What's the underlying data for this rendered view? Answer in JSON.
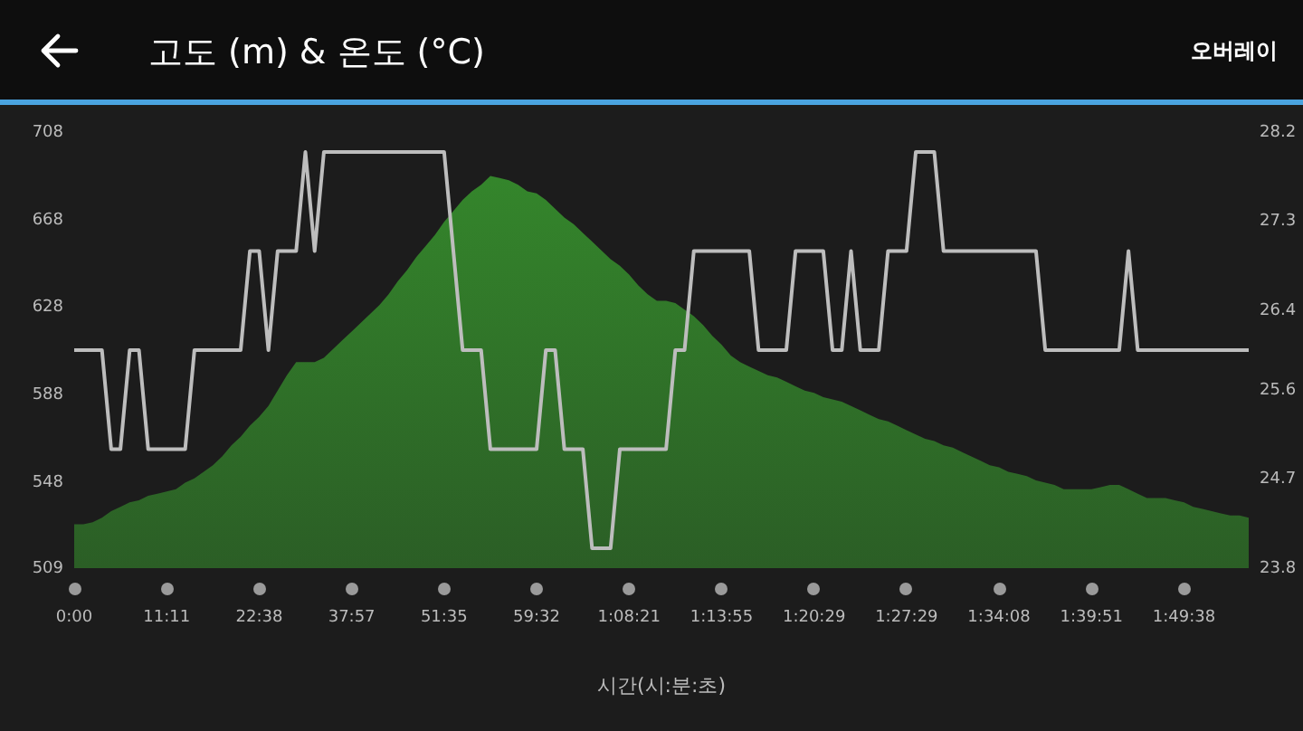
{
  "chart_data": {
    "type": "area",
    "title": "고도 (m) & 온도 (°C)",
    "xlabel": "시간(시:분:초)",
    "annotations": [
      "오버레이"
    ],
    "grid": false,
    "legend": false,
    "categories": [
      "0:00",
      null,
      null,
      null,
      null,
      null,
      null,
      null,
      null,
      null,
      "11:11",
      null,
      null,
      null,
      null,
      null,
      null,
      null,
      null,
      null,
      "22:38",
      null,
      null,
      null,
      null,
      null,
      null,
      null,
      null,
      null,
      "37:57",
      null,
      null,
      null,
      null,
      null,
      null,
      null,
      null,
      null,
      "51:35",
      null,
      null,
      null,
      null,
      null,
      null,
      null,
      null,
      null,
      "59:32",
      null,
      null,
      null,
      null,
      null,
      null,
      null,
      null,
      null,
      "1:08:21",
      null,
      null,
      null,
      null,
      null,
      null,
      null,
      null,
      null,
      "1:13:55",
      null,
      null,
      null,
      null,
      null,
      null,
      null,
      null,
      null,
      "1:20:29",
      null,
      null,
      null,
      null,
      null,
      null,
      null,
      null,
      null,
      "1:27:29",
      null,
      null,
      null,
      null,
      null,
      null,
      null,
      null,
      null,
      "1:34:08",
      null,
      null,
      null,
      null,
      null,
      null,
      null,
      null,
      null,
      "1:39:51",
      null,
      null,
      null,
      null,
      null,
      null,
      null,
      null,
      null,
      "1:49:38",
      null,
      null,
      null,
      null,
      null,
      null,
      null
    ],
    "ylim": [
      509,
      708
    ],
    "yticks": [
      509,
      548,
      588,
      628,
      668,
      708
    ],
    "y2lim": [
      23.8,
      28.2
    ],
    "y2ticks": [
      23.8,
      24.7,
      25.6,
      26.4,
      27.3,
      28.2
    ],
    "series": [
      {
        "color": "#358a2c",
        "values": [
          529,
          529,
          530,
          532,
          535,
          537,
          539,
          540,
          542,
          543,
          544,
          545,
          548,
          550,
          553,
          556,
          560,
          565,
          569,
          574,
          578,
          583,
          590,
          597,
          603,
          603,
          603,
          605,
          609,
          613,
          617,
          621,
          625,
          629,
          634,
          640,
          645,
          651,
          656,
          661,
          667,
          672,
          677,
          681,
          684,
          688,
          687,
          686,
          684,
          681,
          680,
          677,
          673,
          669,
          666,
          662,
          658,
          654,
          650,
          647,
          643,
          638,
          634,
          631,
          631,
          630,
          627,
          624,
          620,
          615,
          611,
          606,
          603,
          601,
          599,
          597,
          596,
          594,
          592,
          590,
          589,
          587,
          586,
          585,
          583,
          581,
          579,
          577,
          576,
          574,
          572,
          570,
          568,
          567,
          565,
          564,
          562,
          560,
          558,
          556,
          555,
          553,
          552,
          551,
          549,
          548,
          547,
          545,
          545,
          545,
          545,
          546,
          547,
          547,
          545,
          543,
          541,
          541,
          541,
          540,
          539,
          537,
          536,
          535,
          534,
          533,
          533,
          532
        ]
      },
      {
        "type": "line",
        "axis": "y2",
        "color": "#bdbdbd",
        "values": [
          26,
          26,
          26,
          26,
          25,
          25,
          26,
          26,
          25,
          25,
          25,
          25,
          25,
          26,
          26,
          26,
          26,
          26,
          26,
          27,
          27,
          26,
          27,
          27,
          27,
          28,
          27,
          28,
          28,
          28,
          28,
          28,
          28,
          28,
          28,
          28,
          28,
          28,
          28,
          28,
          28,
          27,
          26,
          26,
          26,
          25,
          25,
          25,
          25,
          25,
          25,
          26,
          26,
          25,
          25,
          25,
          24,
          24,
          24,
          25,
          25,
          25,
          25,
          25,
          25,
          26,
          26,
          27,
          27,
          27,
          27,
          27,
          27,
          27,
          26,
          26,
          26,
          26,
          27,
          27,
          27,
          27,
          26,
          26,
          27,
          26,
          26,
          26,
          27,
          27,
          27,
          28,
          28,
          28,
          27,
          27,
          27,
          27,
          27,
          27,
          27,
          27,
          27,
          27,
          27,
          26,
          26,
          26,
          26,
          26,
          26,
          26,
          26,
          26,
          27,
          26,
          26,
          26,
          26,
          26,
          26,
          26,
          26,
          26,
          26,
          26,
          26,
          26
        ]
      }
    ]
  }
}
